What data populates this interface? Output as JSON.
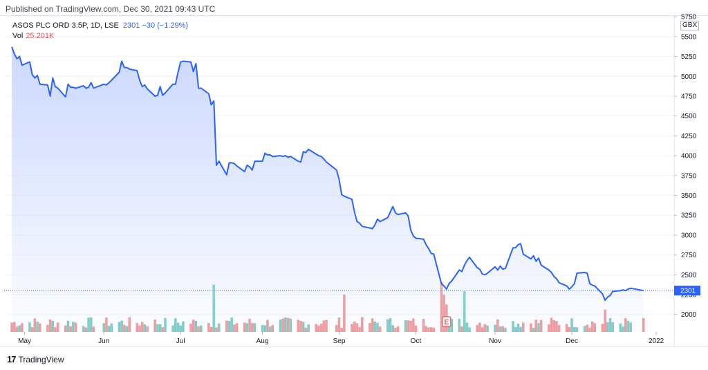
{
  "header": {
    "published": "Published on TradingView.com, Dec 30, 2021 09:43 UTC"
  },
  "legend": {
    "symbol": "ASOS PLC ORD 3.5P, 1D, LSE",
    "price_text": "2301  −30 (−1.29%)",
    "vol_label": "Vol",
    "vol_value": "25.201K"
  },
  "currency": "GBX",
  "footer": {
    "logo_mark": "17",
    "logo_text": "TradingView"
  },
  "colors": {
    "line": "#2962ff",
    "area_top": "#c9d6ff",
    "vol_up": "#80cbc4",
    "vol_down": "#ef9a9a",
    "grid": "#f0f3fa",
    "price_label_bg": "#2962ff"
  },
  "chart_data": {
    "type": "line",
    "title": "",
    "x_tick_labels": [
      "May",
      "Jun",
      "Jul",
      "Aug",
      "Sep",
      "Oct",
      "Nov",
      "Dec",
      "2022"
    ],
    "y_tick_labels": [
      "2000",
      "2250",
      "2500",
      "2750",
      "3000",
      "3250",
      "3500",
      "3750",
      "4000",
      "4250",
      "4500",
      "4750",
      "5000",
      "5250",
      "5500",
      "5750"
    ],
    "ylim": [
      1780,
      5760
    ],
    "last_price": 2301,
    "last_price_label": "2301",
    "earnings_marker": {
      "label": "E",
      "date": "2021-10-13"
    },
    "series": [
      {
        "values": [
          [
            "2021-04-26",
            5370
          ],
          [
            "2021-04-27",
            5280
          ],
          [
            "2021-04-28",
            5220
          ],
          [
            "2021-04-29",
            5250
          ],
          [
            "2021-04-30",
            5140
          ],
          [
            "2021-05-03",
            5180
          ],
          [
            "2021-05-04",
            5020
          ],
          [
            "2021-05-05",
            4980
          ],
          [
            "2021-05-06",
            5010
          ],
          [
            "2021-05-07",
            4900
          ],
          [
            "2021-05-10",
            4890
          ],
          [
            "2021-05-11",
            4750
          ],
          [
            "2021-05-12",
            4980
          ],
          [
            "2021-05-13",
            4870
          ],
          [
            "2021-05-14",
            4850
          ],
          [
            "2021-05-17",
            4740
          ],
          [
            "2021-05-18",
            4900
          ],
          [
            "2021-05-19",
            4860
          ],
          [
            "2021-05-20",
            4860
          ],
          [
            "2021-05-21",
            4850
          ],
          [
            "2021-05-24",
            4880
          ],
          [
            "2021-05-25",
            4850
          ],
          [
            "2021-05-26",
            4860
          ],
          [
            "2021-05-27",
            4920
          ],
          [
            "2021-05-28",
            4850
          ],
          [
            "2021-06-01",
            4900
          ],
          [
            "2021-06-02",
            4890
          ],
          [
            "2021-06-03",
            4920
          ],
          [
            "2021-06-04",
            4950
          ],
          [
            "2021-06-07",
            5050
          ],
          [
            "2021-06-08",
            5190
          ],
          [
            "2021-06-09",
            5110
          ],
          [
            "2021-06-10",
            5110
          ],
          [
            "2021-06-11",
            5090
          ],
          [
            "2021-06-14",
            5070
          ],
          [
            "2021-06-15",
            4950
          ],
          [
            "2021-06-16",
            4870
          ],
          [
            "2021-06-17",
            4890
          ],
          [
            "2021-06-18",
            4840
          ],
          [
            "2021-06-21",
            4750
          ],
          [
            "2021-06-22",
            4760
          ],
          [
            "2021-06-23",
            4870
          ],
          [
            "2021-06-24",
            4760
          ],
          [
            "2021-06-25",
            4790
          ],
          [
            "2021-06-28",
            4900
          ],
          [
            "2021-06-29",
            4900
          ],
          [
            "2021-06-30",
            5050
          ],
          [
            "2021-07-01",
            5180
          ],
          [
            "2021-07-02",
            5190
          ],
          [
            "2021-07-05",
            5180
          ],
          [
            "2021-07-06",
            5060
          ],
          [
            "2021-07-07",
            5160
          ],
          [
            "2021-07-08",
            4850
          ],
          [
            "2021-07-09",
            4850
          ],
          [
            "2021-07-12",
            4780
          ],
          [
            "2021-07-13",
            4640
          ],
          [
            "2021-07-14",
            4690
          ],
          [
            "2021-07-15",
            3880
          ],
          [
            "2021-07-16",
            3930
          ],
          [
            "2021-07-19",
            3760
          ],
          [
            "2021-07-20",
            3910
          ],
          [
            "2021-07-21",
            3910
          ],
          [
            "2021-07-22",
            3900
          ],
          [
            "2021-07-23",
            3870
          ],
          [
            "2021-07-26",
            3800
          ],
          [
            "2021-07-27",
            3880
          ],
          [
            "2021-07-28",
            3860
          ],
          [
            "2021-07-29",
            3820
          ],
          [
            "2021-07-30",
            3930
          ],
          [
            "2021-08-02",
            3930
          ],
          [
            "2021-08-03",
            4030
          ],
          [
            "2021-08-04",
            4010
          ],
          [
            "2021-08-05",
            4010
          ],
          [
            "2021-08-06",
            3990
          ],
          [
            "2021-08-09",
            4000
          ],
          [
            "2021-08-10",
            3990
          ],
          [
            "2021-08-11",
            4000
          ],
          [
            "2021-08-12",
            3980
          ],
          [
            "2021-08-13",
            3990
          ],
          [
            "2021-08-16",
            3930
          ],
          [
            "2021-08-17",
            3920
          ],
          [
            "2021-08-18",
            4050
          ],
          [
            "2021-08-19",
            4040
          ],
          [
            "2021-08-20",
            4080
          ],
          [
            "2021-08-23",
            4020
          ],
          [
            "2021-08-24",
            4000
          ],
          [
            "2021-08-25",
            3990
          ],
          [
            "2021-08-26",
            3960
          ],
          [
            "2021-08-27",
            3920
          ],
          [
            "2021-08-31",
            3820
          ],
          [
            "2021-09-01",
            3700
          ],
          [
            "2021-09-02",
            3510
          ],
          [
            "2021-09-03",
            3490
          ],
          [
            "2021-09-06",
            3450
          ],
          [
            "2021-09-07",
            3290
          ],
          [
            "2021-09-08",
            3170
          ],
          [
            "2021-09-09",
            3150
          ],
          [
            "2021-09-10",
            3110
          ],
          [
            "2021-09-13",
            3090
          ],
          [
            "2021-09-14",
            3080
          ],
          [
            "2021-09-15",
            3130
          ],
          [
            "2021-09-16",
            3200
          ],
          [
            "2021-09-17",
            3170
          ],
          [
            "2021-09-20",
            3220
          ],
          [
            "2021-09-21",
            3290
          ],
          [
            "2021-09-22",
            3360
          ],
          [
            "2021-09-23",
            3280
          ],
          [
            "2021-09-24",
            3260
          ],
          [
            "2021-09-27",
            3280
          ],
          [
            "2021-09-28",
            3240
          ],
          [
            "2021-09-29",
            3060
          ],
          [
            "2021-09-30",
            2990
          ],
          [
            "2021-10-01",
            2960
          ],
          [
            "2021-10-04",
            2950
          ],
          [
            "2021-10-05",
            2880
          ],
          [
            "2021-10-06",
            2830
          ],
          [
            "2021-10-07",
            2770
          ],
          [
            "2021-10-08",
            2760
          ],
          [
            "2021-10-11",
            2390
          ],
          [
            "2021-10-12",
            2360
          ],
          [
            "2021-10-13",
            2320
          ],
          [
            "2021-10-14",
            2390
          ],
          [
            "2021-10-15",
            2420
          ],
          [
            "2021-10-18",
            2560
          ],
          [
            "2021-10-19",
            2540
          ],
          [
            "2021-10-20",
            2620
          ],
          [
            "2021-10-21",
            2680
          ],
          [
            "2021-10-22",
            2720
          ],
          [
            "2021-10-25",
            2590
          ],
          [
            "2021-10-26",
            2570
          ],
          [
            "2021-10-27",
            2510
          ],
          [
            "2021-10-28",
            2500
          ],
          [
            "2021-10-29",
            2520
          ],
          [
            "2021-11-01",
            2600
          ],
          [
            "2021-11-02",
            2560
          ],
          [
            "2021-11-03",
            2610
          ],
          [
            "2021-11-04",
            2570
          ],
          [
            "2021-11-05",
            2580
          ],
          [
            "2021-11-08",
            2840
          ],
          [
            "2021-11-09",
            2840
          ],
          [
            "2021-11-10",
            2880
          ],
          [
            "2021-11-11",
            2890
          ],
          [
            "2021-11-12",
            2760
          ],
          [
            "2021-11-15",
            2700
          ],
          [
            "2021-11-16",
            2740
          ],
          [
            "2021-11-17",
            2670
          ],
          [
            "2021-11-18",
            2710
          ],
          [
            "2021-11-19",
            2620
          ],
          [
            "2021-11-22",
            2560
          ],
          [
            "2021-11-23",
            2530
          ],
          [
            "2021-11-24",
            2480
          ],
          [
            "2021-11-25",
            2450
          ],
          [
            "2021-11-26",
            2400
          ],
          [
            "2021-11-29",
            2360
          ],
          [
            "2021-11-30",
            2320
          ],
          [
            "2021-12-01",
            2350
          ],
          [
            "2021-12-02",
            2390
          ],
          [
            "2021-12-03",
            2520
          ],
          [
            "2021-12-06",
            2530
          ],
          [
            "2021-12-07",
            2520
          ],
          [
            "2021-12-08",
            2390
          ],
          [
            "2021-12-09",
            2370
          ],
          [
            "2021-12-10",
            2360
          ],
          [
            "2021-12-13",
            2260
          ],
          [
            "2021-12-14",
            2180
          ],
          [
            "2021-12-15",
            2220
          ],
          [
            "2021-12-16",
            2240
          ],
          [
            "2021-12-17",
            2290
          ],
          [
            "2021-12-20",
            2300
          ],
          [
            "2021-12-21",
            2310
          ],
          [
            "2021-12-22",
            2300
          ],
          [
            "2021-12-23",
            2320
          ],
          [
            "2021-12-24",
            2331
          ],
          [
            "2021-12-29",
            2301
          ]
        ]
      }
    ]
  }
}
